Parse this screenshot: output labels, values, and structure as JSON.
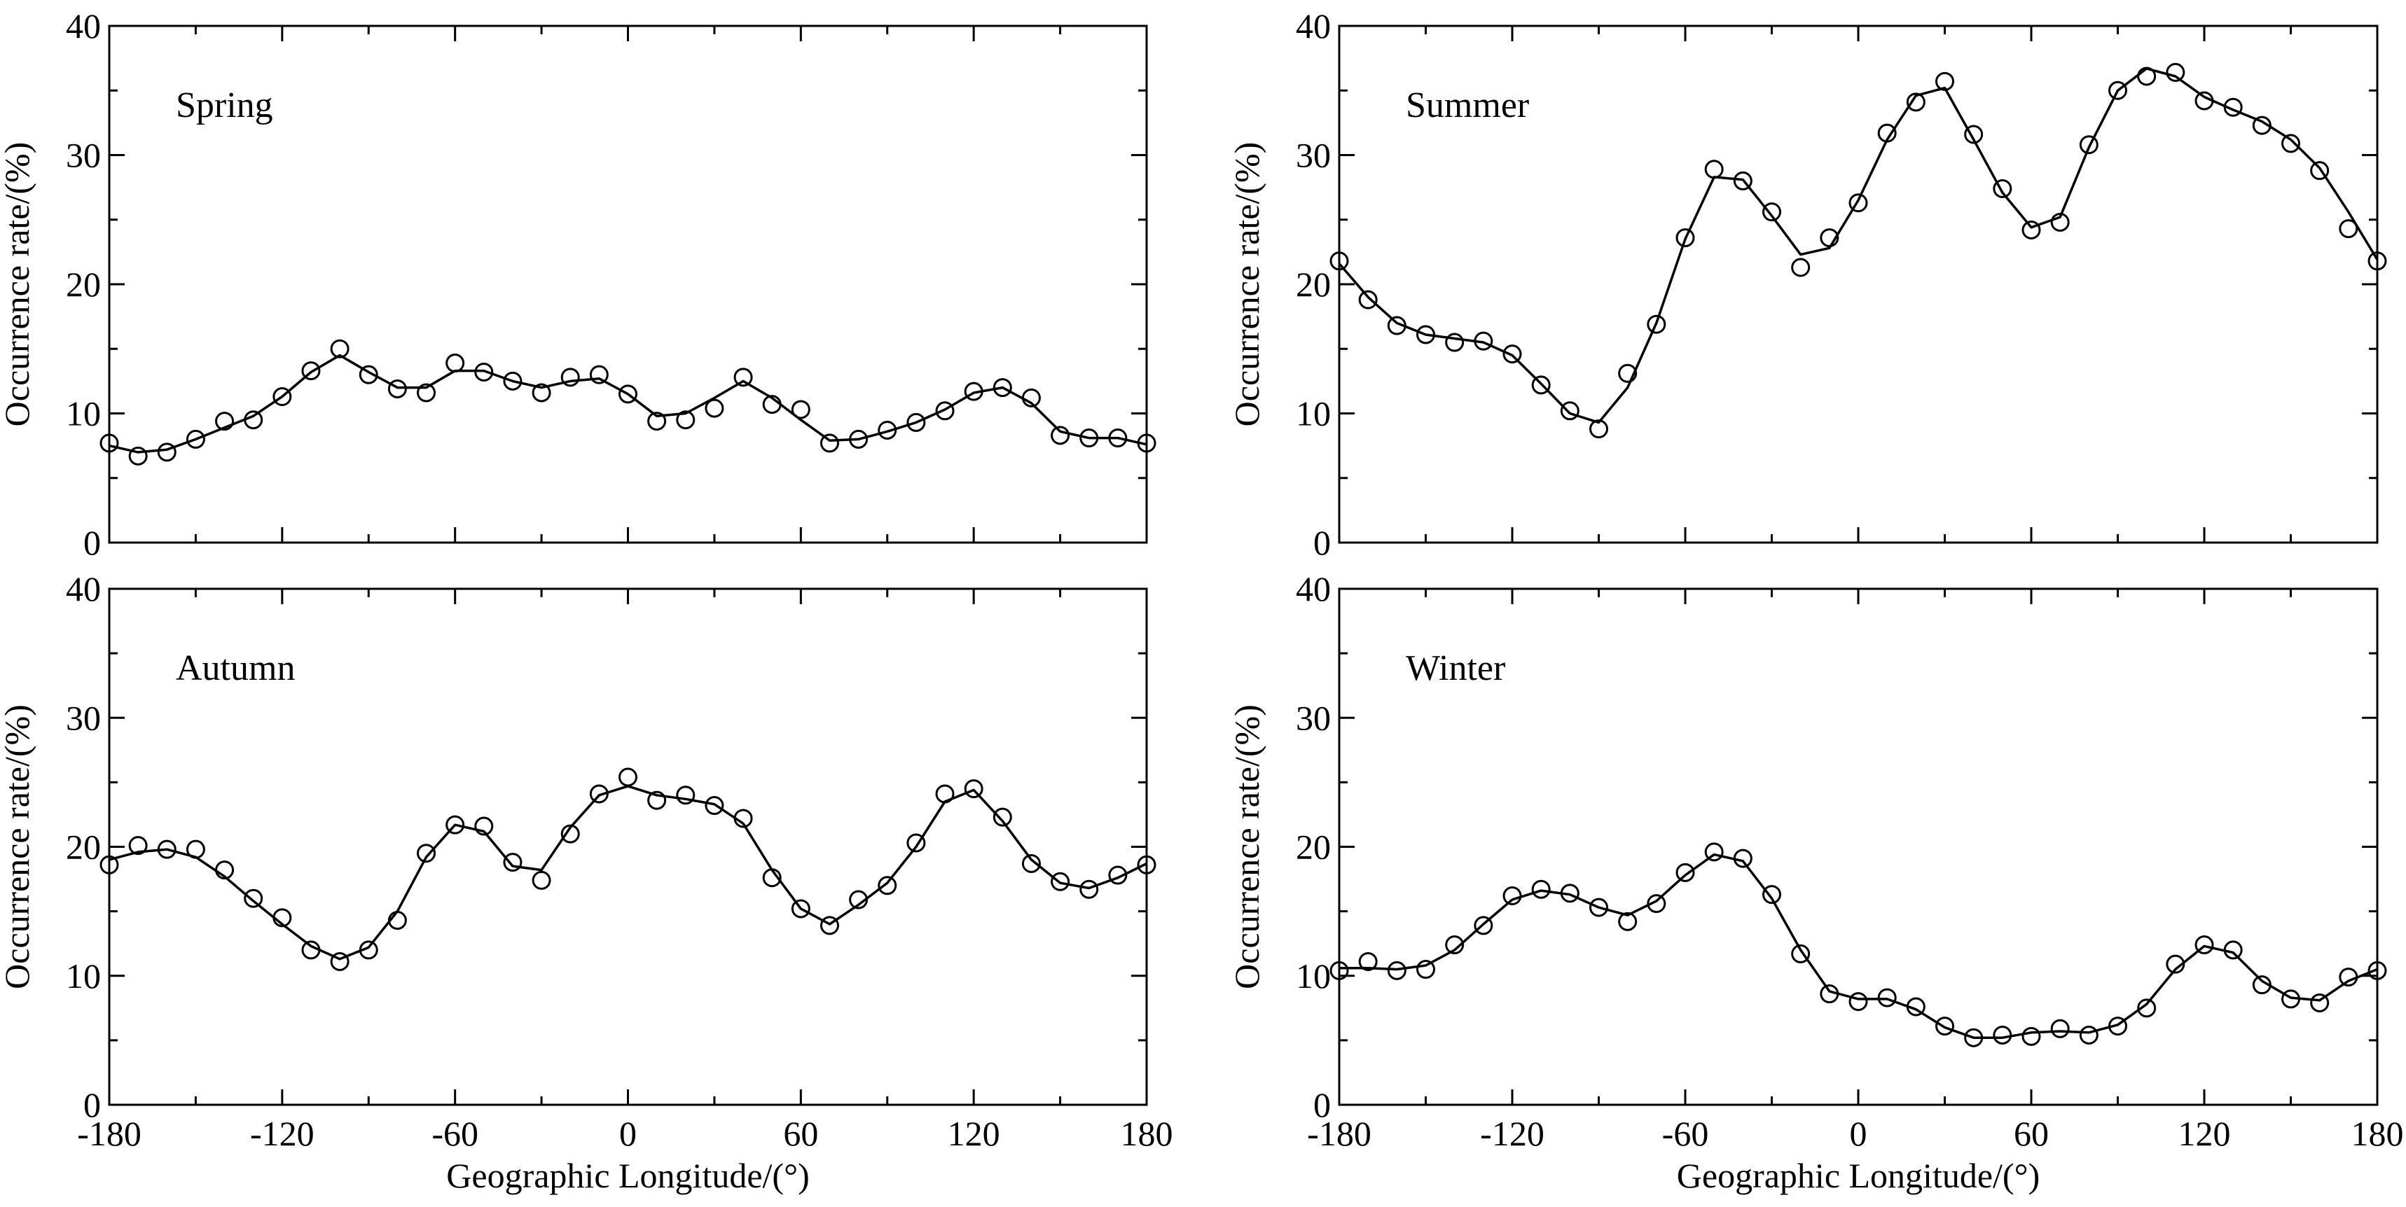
{
  "chart_data": [
    {
      "type": "scatter",
      "panel_label": "Spring",
      "xlabel": "",
      "ylabel": "Occurrence rate/(%)",
      "xlim": [
        -180,
        180
      ],
      "ylim": [
        0,
        40
      ],
      "xticks": [
        -180,
        -120,
        -60,
        0,
        60,
        120,
        180
      ],
      "yticks": [
        0,
        10,
        20,
        30,
        40
      ],
      "show_xtick_labels": false,
      "grid": false,
      "series": [
        {
          "points": {
            "x": [
              -180,
              -170,
              -160,
              -150,
              -140,
              -130,
              -120,
              -110,
              -100,
              -90,
              -80,
              -70,
              -60,
              -50,
              -40,
              -30,
              -20,
              -10,
              0,
              10,
              20,
              30,
              40,
              50,
              60,
              70,
              80,
              90,
              100,
              110,
              120,
              130,
              140,
              150,
              160,
              170,
              180
            ],
            "y": [
              7.7,
              6.7,
              7.0,
              8.0,
              9.4,
              9.5,
              11.3,
              13.3,
              15.0,
              13.0,
              11.9,
              11.6,
              13.9,
              13.2,
              12.5,
              11.6,
              12.8,
              13.0,
              11.5,
              9.4,
              9.5,
              10.4,
              12.8,
              10.7,
              10.3,
              7.7,
              8.0,
              8.7,
              9.3,
              10.2,
              11.7,
              12.0,
              11.2,
              8.3,
              8.1,
              8.1,
              7.7
            ]
          },
          "line": {
            "x": [
              -180,
              -170,
              -160,
              -150,
              -140,
              -130,
              -120,
              -110,
              -100,
              -90,
              -80,
              -70,
              -60,
              -50,
              -40,
              -30,
              -20,
              -10,
              0,
              10,
              20,
              30,
              40,
              50,
              60,
              70,
              80,
              90,
              100,
              110,
              120,
              130,
              140,
              150,
              160,
              170,
              180
            ],
            "y": [
              7.5,
              7.0,
              7.2,
              8.0,
              8.9,
              9.8,
              11.3,
              13.2,
              14.5,
              13.2,
              12.0,
              12.0,
              13.3,
              13.3,
              12.5,
              12.0,
              12.5,
              12.7,
              11.5,
              9.8,
              10.0,
              11.2,
              12.5,
              11.2,
              9.5,
              7.9,
              8.0,
              8.6,
              9.3,
              10.3,
              11.6,
              12.0,
              10.8,
              8.6,
              8.1,
              8.1,
              7.6
            ]
          }
        }
      ]
    },
    {
      "type": "scatter",
      "panel_label": "Summer",
      "xlabel": "",
      "ylabel": "Occurrence rate/(%)",
      "xlim": [
        -180,
        180
      ],
      "ylim": [
        0,
        40
      ],
      "xticks": [
        -180,
        -120,
        -60,
        0,
        60,
        120,
        180
      ],
      "yticks": [
        0,
        10,
        20,
        30,
        40
      ],
      "show_xtick_labels": false,
      "grid": false,
      "series": [
        {
          "points": {
            "x": [
              -180,
              -170,
              -160,
              -150,
              -140,
              -130,
              -120,
              -110,
              -100,
              -90,
              -80,
              -70,
              -60,
              -50,
              -40,
              -30,
              -20,
              -10,
              0,
              10,
              20,
              30,
              40,
              50,
              60,
              70,
              80,
              90,
              100,
              110,
              120,
              130,
              140,
              150,
              160,
              170,
              180
            ],
            "y": [
              21.8,
              18.8,
              16.8,
              16.1,
              15.5,
              15.6,
              14.6,
              12.2,
              10.2,
              8.8,
              13.1,
              16.9,
              23.6,
              28.9,
              28.0,
              25.6,
              21.3,
              23.6,
              26.3,
              31.7,
              34.1,
              35.7,
              31.6,
              27.4,
              24.2,
              24.8,
              30.8,
              35.0,
              36.1,
              36.4,
              34.2,
              33.7,
              32.3,
              30.9,
              28.8,
              24.3,
              21.8
            ]
          },
          "line": {
            "x": [
              -180,
              -170,
              -160,
              -150,
              -140,
              -130,
              -120,
              -110,
              -100,
              -90,
              -80,
              -70,
              -60,
              -50,
              -40,
              -30,
              -20,
              -10,
              0,
              10,
              20,
              30,
              40,
              50,
              60,
              70,
              80,
              90,
              100,
              110,
              120,
              130,
              140,
              150,
              160,
              170,
              180
            ],
            "y": [
              21.6,
              19.0,
              17.0,
              16.1,
              15.8,
              15.5,
              14.5,
              12.3,
              10.0,
              9.3,
              12.0,
              17.0,
              23.5,
              28.3,
              28.1,
              25.3,
              22.3,
              22.8,
              26.5,
              31.2,
              34.6,
              35.2,
              31.2,
              27.1,
              24.4,
              25.2,
              30.6,
              35.0,
              36.7,
              36.1,
              34.5,
              33.5,
              32.6,
              31.2,
              29.0,
              25.6,
              21.9
            ]
          }
        }
      ]
    },
    {
      "type": "scatter",
      "panel_label": "Autumn",
      "xlabel": "Geographic Longitude/(°)",
      "ylabel": "Occurrence rate/(%)",
      "xlim": [
        -180,
        180
      ],
      "ylim": [
        0,
        40
      ],
      "xticks": [
        -180,
        -120,
        -60,
        0,
        60,
        120,
        180
      ],
      "yticks": [
        0,
        10,
        20,
        30,
        40
      ],
      "show_xtick_labels": true,
      "grid": false,
      "series": [
        {
          "points": {
            "x": [
              -180,
              -170,
              -160,
              -150,
              -140,
              -130,
              -120,
              -110,
              -100,
              -90,
              -80,
              -70,
              -60,
              -50,
              -40,
              -30,
              -20,
              -10,
              0,
              10,
              20,
              30,
              40,
              50,
              60,
              70,
              80,
              90,
              100,
              110,
              120,
              130,
              140,
              150,
              160,
              170,
              180
            ],
            "y": [
              18.6,
              20.1,
              19.8,
              19.8,
              18.2,
              16.0,
              14.5,
              12.0,
              11.1,
              12.0,
              14.3,
              19.5,
              21.7,
              21.6,
              18.8,
              17.4,
              21.0,
              24.1,
              25.4,
              23.6,
              24.0,
              23.2,
              22.2,
              17.6,
              15.2,
              13.9,
              15.9,
              17.0,
              20.3,
              24.1,
              24.5,
              22.3,
              18.7,
              17.3,
              16.7,
              17.8,
              18.6
            ]
          },
          "line": {
            "x": [
              -180,
              -170,
              -160,
              -150,
              -140,
              -130,
              -120,
              -110,
              -100,
              -90,
              -80,
              -70,
              -60,
              -50,
              -40,
              -30,
              -20,
              -10,
              0,
              10,
              20,
              30,
              40,
              50,
              60,
              70,
              80,
              90,
              100,
              110,
              120,
              130,
              140,
              150,
              160,
              170,
              180
            ],
            "y": [
              19.0,
              19.6,
              19.8,
              19.2,
              17.7,
              15.8,
              14.0,
              12.3,
              11.3,
              12.2,
              15.0,
              19.2,
              21.7,
              21.2,
              18.5,
              18.2,
              21.5,
              24.0,
              24.7,
              24.0,
              23.7,
              23.3,
              21.8,
              18.2,
              15.2,
              14.0,
              15.5,
              17.2,
              20.0,
              23.5,
              24.4,
              22.0,
              19.0,
              17.2,
              16.8,
              17.6,
              18.7
            ]
          }
        }
      ]
    },
    {
      "type": "scatter",
      "panel_label": "Winter",
      "xlabel": "Geographic Longitude/(°)",
      "ylabel": "Occurrence rate/(%)",
      "xlim": [
        -180,
        180
      ],
      "ylim": [
        0,
        40
      ],
      "xticks": [
        -180,
        -120,
        -60,
        0,
        60,
        120,
        180
      ],
      "yticks": [
        0,
        10,
        20,
        30,
        40
      ],
      "show_xtick_labels": true,
      "grid": false,
      "series": [
        {
          "points": {
            "x": [
              -180,
              -170,
              -160,
              -150,
              -140,
              -130,
              -120,
              -110,
              -100,
              -90,
              -80,
              -70,
              -60,
              -50,
              -40,
              -30,
              -20,
              -10,
              0,
              10,
              20,
              30,
              40,
              50,
              60,
              70,
              80,
              90,
              100,
              110,
              120,
              130,
              140,
              150,
              160,
              170,
              180
            ],
            "y": [
              10.4,
              11.1,
              10.4,
              10.5,
              12.4,
              13.9,
              16.2,
              16.7,
              16.4,
              15.3,
              14.2,
              15.6,
              18.0,
              19.6,
              19.1,
              16.3,
              11.7,
              8.6,
              8.0,
              8.3,
              7.6,
              6.1,
              5.2,
              5.4,
              5.3,
              5.9,
              5.4,
              6.1,
              7.5,
              10.9,
              12.4,
              12.0,
              9.3,
              8.2,
              7.9,
              9.9,
              10.4
            ]
          },
          "line": {
            "x": [
              -180,
              -170,
              -160,
              -150,
              -140,
              -130,
              -120,
              -110,
              -100,
              -90,
              -80,
              -70,
              -60,
              -50,
              -40,
              -30,
              -20,
              -10,
              0,
              10,
              20,
              30,
              40,
              50,
              60,
              70,
              80,
              90,
              100,
              110,
              120,
              130,
              140,
              150,
              160,
              170,
              180
            ],
            "y": [
              10.6,
              10.6,
              10.5,
              10.8,
              12.0,
              14.0,
              15.9,
              16.6,
              16.3,
              15.3,
              14.7,
              15.8,
              17.8,
              19.4,
              18.9,
              16.0,
              12.0,
              8.8,
              8.2,
              8.2,
              7.4,
              6.0,
              5.2,
              5.2,
              5.6,
              5.7,
              5.6,
              6.2,
              7.8,
              10.5,
              12.3,
              11.8,
              9.6,
              8.3,
              8.1,
              9.6,
              10.5
            ]
          }
        }
      ]
    }
  ]
}
